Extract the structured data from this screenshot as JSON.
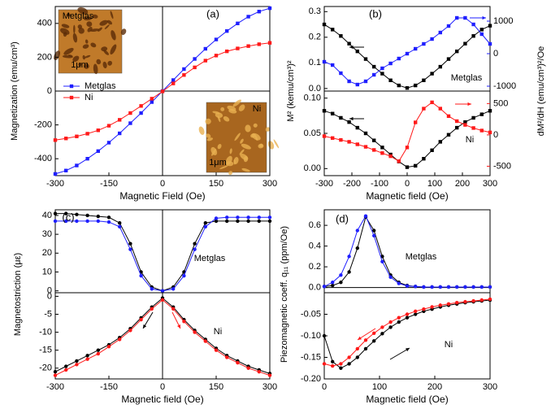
{
  "chart_data": [
    {
      "type": "line",
      "title": "(a)",
      "xlabel": "Magnetic Field (Oe)",
      "ylabel": "Magnetization (emu/cm³)",
      "x": [
        -300,
        -270,
        -240,
        -210,
        -180,
        -150,
        -120,
        -90,
        -60,
        -30,
        0,
        30,
        60,
        90,
        120,
        150,
        180,
        210,
        240,
        270,
        300
      ],
      "xlim": [
        -300,
        300
      ],
      "xticks": [
        -300,
        -150,
        0,
        150,
        300
      ],
      "ylim": [
        -500,
        500
      ],
      "yticks": [
        -400,
        -200,
        0,
        200,
        400
      ],
      "legend": "left",
      "marker": "square",
      "series": [
        {
          "name": "Metglas",
          "color": "#1f1fff",
          "values": [
            -490,
            -470,
            -440,
            -400,
            -355,
            -305,
            -250,
            -190,
            -130,
            -65,
            0,
            65,
            130,
            190,
            250,
            305,
            355,
            400,
            440,
            470,
            490
          ]
        },
        {
          "name": "Ni",
          "color": "#ff1a1a",
          "values": [
            -290,
            -280,
            -268,
            -252,
            -232,
            -205,
            -170,
            -130,
            -88,
            -45,
            -2,
            45,
            95,
            140,
            180,
            210,
            235,
            252,
            266,
            277,
            285
          ]
        }
      ],
      "annotations": [
        "Metglas",
        "1μm",
        "Ni",
        "1μm"
      ]
    },
    {
      "type": "line",
      "title": "(b)",
      "ylabel": "M² (kemu/cm³)²",
      "y2label": "dM²/dH (emu/cm³)²/Oe",
      "x": [
        -300,
        -270,
        -240,
        -210,
        -180,
        -150,
        -120,
        -90,
        -60,
        -30,
        0,
        30,
        60,
        90,
        120,
        150,
        180,
        210,
        240,
        270,
        300
      ],
      "xlim": [
        -300,
        300
      ],
      "ylim": [
        -0.01,
        0.32
      ],
      "yticks": [
        {
          "value": 0,
          "label": "0.0"
        },
        {
          "value": 0.1,
          "label": "0.1"
        },
        {
          "value": 0.2,
          "label": "0.2"
        },
        {
          "value": 0.3,
          "label": "0.3"
        }
      ],
      "y2lim": [
        -1150,
        1450
      ],
      "y2ticks": [
        -1000,
        0,
        1000
      ],
      "marker": "square",
      "series": [
        {
          "color": "#000000",
          "values": [
            0.25,
            0.23,
            0.205,
            0.175,
            0.145,
            0.115,
            0.085,
            0.058,
            0.032,
            0.012,
            0.002,
            0.012,
            0.032,
            0.058,
            0.085,
            0.115,
            0.145,
            0.175,
            0.205,
            0.23,
            0.245
          ]
        },
        {
          "color": "#1f1fff",
          "axis": "y2",
          "values": [
            -250,
            -350,
            -600,
            -850,
            -950,
            -850,
            -650,
            -450,
            -300,
            -150,
            0,
            150,
            300,
            450,
            650,
            850,
            1100,
            1100,
            900,
            600,
            300
          ]
        }
      ],
      "annotations": [
        "Metglas"
      ]
    },
    {
      "type": "line",
      "xlabel": "Magnetic field (Oe)",
      "x": [
        -300,
        -270,
        -240,
        -210,
        -180,
        -150,
        -120,
        -90,
        -60,
        -30,
        0,
        30,
        60,
        90,
        120,
        150,
        180,
        210,
        240,
        270,
        300
      ],
      "xlim": [
        -300,
        300
      ],
      "xticks": [
        -300,
        -200,
        -100,
        0,
        100,
        200,
        300
      ],
      "ylim": [
        -0.01,
        0.11
      ],
      "yticks": [
        {
          "value": 0,
          "label": "0.00"
        },
        {
          "value": 0.05,
          "label": "0.05"
        },
        {
          "value": 0.1,
          "label": "0.10"
        }
      ],
      "y2lim": [
        -650,
        700
      ],
      "y2ticks": [
        -500,
        0,
        500
      ],
      "marker": "square",
      "series": [
        {
          "color": "#000000",
          "values": [
            0.082,
            0.078,
            0.072,
            0.066,
            0.058,
            0.05,
            0.04,
            0.03,
            0.02,
            0.01,
            0.002,
            0.004,
            0.014,
            0.026,
            0.038,
            0.048,
            0.058,
            0.066,
            0.072,
            0.077,
            0.082
          ]
        },
        {
          "color": "#ff1a1a",
          "axis": "y2",
          "values": [
            -20,
            -50,
            -80,
            -110,
            -150,
            -190,
            -240,
            -290,
            -340,
            -420,
            -200,
            200,
            420,
            520,
            420,
            300,
            220,
            160,
            110,
            70,
            40
          ]
        }
      ],
      "annotations": [
        "Ni"
      ]
    },
    {
      "type": "line",
      "title": "(c)",
      "ylabel": "Magnetostriction (με)",
      "x": [
        -300,
        -270,
        -240,
        -210,
        -180,
        -150,
        -120,
        -90,
        -60,
        -30,
        0,
        30,
        60,
        90,
        120,
        150,
        180,
        210,
        240,
        270,
        300
      ],
      "xlim": [
        -300,
        300
      ],
      "ylim": [
        -1,
        43
      ],
      "yticks": [
        0,
        10,
        20,
        30,
        40
      ],
      "marker": "circle",
      "series": [
        {
          "color": "#000000",
          "values": [
            41,
            41,
            40.5,
            40,
            39.5,
            39,
            36,
            25,
            10,
            2,
            0,
            2,
            10,
            25,
            36,
            37,
            37,
            37,
            37,
            37,
            37
          ]
        },
        {
          "color": "#1f1fff",
          "values": [
            37,
            37,
            37,
            37,
            37,
            36.5,
            34,
            22,
            8,
            1,
            0,
            1,
            8,
            22,
            34,
            38.5,
            39,
            39,
            39,
            39,
            39
          ]
        }
      ],
      "annotations": [
        "Metglas"
      ]
    },
    {
      "type": "line",
      "xlabel": "Magnetic field (Oe)",
      "x": [
        -300,
        -270,
        -240,
        -210,
        -180,
        -150,
        -120,
        -90,
        -60,
        -30,
        0,
        30,
        60,
        90,
        120,
        150,
        180,
        210,
        240,
        270,
        300
      ],
      "xlim": [
        -300,
        300
      ],
      "xticks": [
        -300,
        -150,
        0,
        150,
        300
      ],
      "ylim": [
        -23,
        1
      ],
      "yticks": [
        0,
        -5,
        -10,
        -15,
        -20
      ],
      "marker": "circle",
      "series": [
        {
          "color": "#000000",
          "values": [
            -21,
            -19.5,
            -18,
            -16.5,
            -15,
            -13.5,
            -11.5,
            -9,
            -6,
            -3,
            -0.5,
            -3,
            -6.5,
            -9.5,
            -12,
            -14.5,
            -16.5,
            -18,
            -19.5,
            -20.5,
            -21.5
          ]
        },
        {
          "color": "#ff1a1a",
          "values": [
            -22,
            -20.5,
            -19,
            -17.5,
            -16,
            -14,
            -12,
            -9.5,
            -6.5,
            -3.5,
            -1,
            -3.5,
            -7,
            -10,
            -12.5,
            -15,
            -17,
            -18.5,
            -20,
            -21,
            -22
          ]
        }
      ],
      "annotations": [
        "Ni"
      ]
    },
    {
      "type": "line",
      "title": "(d)",
      "ylabel": "Piezomagnetic coeff. q₁₁ (ppm/Oe)",
      "x": [
        0,
        15,
        30,
        45,
        60,
        75,
        90,
        105,
        120,
        135,
        150,
        165,
        180,
        195,
        210,
        225,
        240,
        255,
        270,
        285,
        300
      ],
      "xlim": [
        0,
        300
      ],
      "ylim": [
        -0.05,
        0.75
      ],
      "yticks": [
        {
          "value": 0,
          "label": "0.0"
        },
        {
          "value": 0.2,
          "label": "0.2"
        },
        {
          "value": 0.4,
          "label": "0.4"
        },
        {
          "value": 0.6,
          "label": "0.6"
        }
      ],
      "marker": "circle",
      "series": [
        {
          "color": "#000000",
          "values": [
            0.01,
            0.02,
            0.05,
            0.15,
            0.38,
            0.68,
            0.55,
            0.3,
            0.12,
            0.05,
            0.02,
            0.01,
            0.005,
            0.005,
            0.005,
            0.005,
            0.005,
            0.005,
            0.005,
            0.005,
            0.005
          ]
        },
        {
          "color": "#1f1fff",
          "values": [
            0.01,
            0.05,
            0.12,
            0.3,
            0.55,
            0.69,
            0.5,
            0.25,
            0.1,
            0.04,
            0.015,
            0.01,
            0.005,
            0.005,
            0.005,
            0.005,
            0.005,
            0.005,
            0.005,
            0.005,
            0.005
          ]
        }
      ],
      "annotations": [
        "Metglas"
      ]
    },
    {
      "type": "line",
      "xlabel": "Magnetic field (Oe)",
      "x": [
        0,
        15,
        30,
        45,
        60,
        75,
        90,
        105,
        120,
        135,
        150,
        165,
        180,
        195,
        210,
        225,
        240,
        255,
        270,
        285,
        300
      ],
      "xlim": [
        0,
        300
      ],
      "xticks": [
        0,
        100,
        200,
        300
      ],
      "ylim": [
        -0.2,
        0
      ],
      "yticks": [
        {
          "value": -0.05,
          "label": "-0.05"
        },
        {
          "value": -0.1,
          "label": "-0.10"
        },
        {
          "value": -0.15,
          "label": "-0.15"
        },
        {
          "value": -0.2,
          "label": "-0.20"
        }
      ],
      "marker": "circle",
      "series": [
        {
          "color": "#000000",
          "values": [
            -0.1,
            -0.16,
            -0.175,
            -0.165,
            -0.15,
            -0.13,
            -0.112,
            -0.095,
            -0.08,
            -0.068,
            -0.058,
            -0.05,
            -0.043,
            -0.038,
            -0.033,
            -0.029,
            -0.026,
            -0.023,
            -0.021,
            -0.019,
            -0.017
          ]
        },
        {
          "color": "#ff1a1a",
          "values": [
            -0.165,
            -0.17,
            -0.165,
            -0.15,
            -0.13,
            -0.11,
            -0.094,
            -0.08,
            -0.068,
            -0.058,
            -0.05,
            -0.043,
            -0.038,
            -0.033,
            -0.029,
            -0.026,
            -0.023,
            -0.021,
            -0.019,
            -0.017,
            -0.015
          ]
        }
      ],
      "annotations": [
        "Ni"
      ]
    }
  ]
}
